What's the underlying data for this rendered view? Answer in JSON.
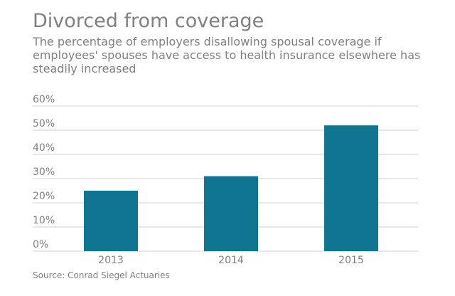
{
  "header": {
    "title": "Divorced from coverage",
    "subtitle": "The percentage of employers disallowing spousal coverage if employees' spouses have access to health insurance elsewhere has steadily increased"
  },
  "footer": {
    "source": "Source: Conrad Siegel Actuaries"
  },
  "colors": {
    "bar": "#0f7591",
    "text": "#808080",
    "grid": "#cfcfcf"
  },
  "chart_data": {
    "type": "bar",
    "categories": [
      "2013",
      "2014",
      "2015"
    ],
    "values": [
      25,
      31,
      52
    ],
    "yticks": [
      "0%",
      "10%",
      "20%",
      "30%",
      "40%",
      "50%",
      "60%"
    ],
    "ylim": [
      0,
      60
    ],
    "grid": true,
    "legend": "none"
  }
}
